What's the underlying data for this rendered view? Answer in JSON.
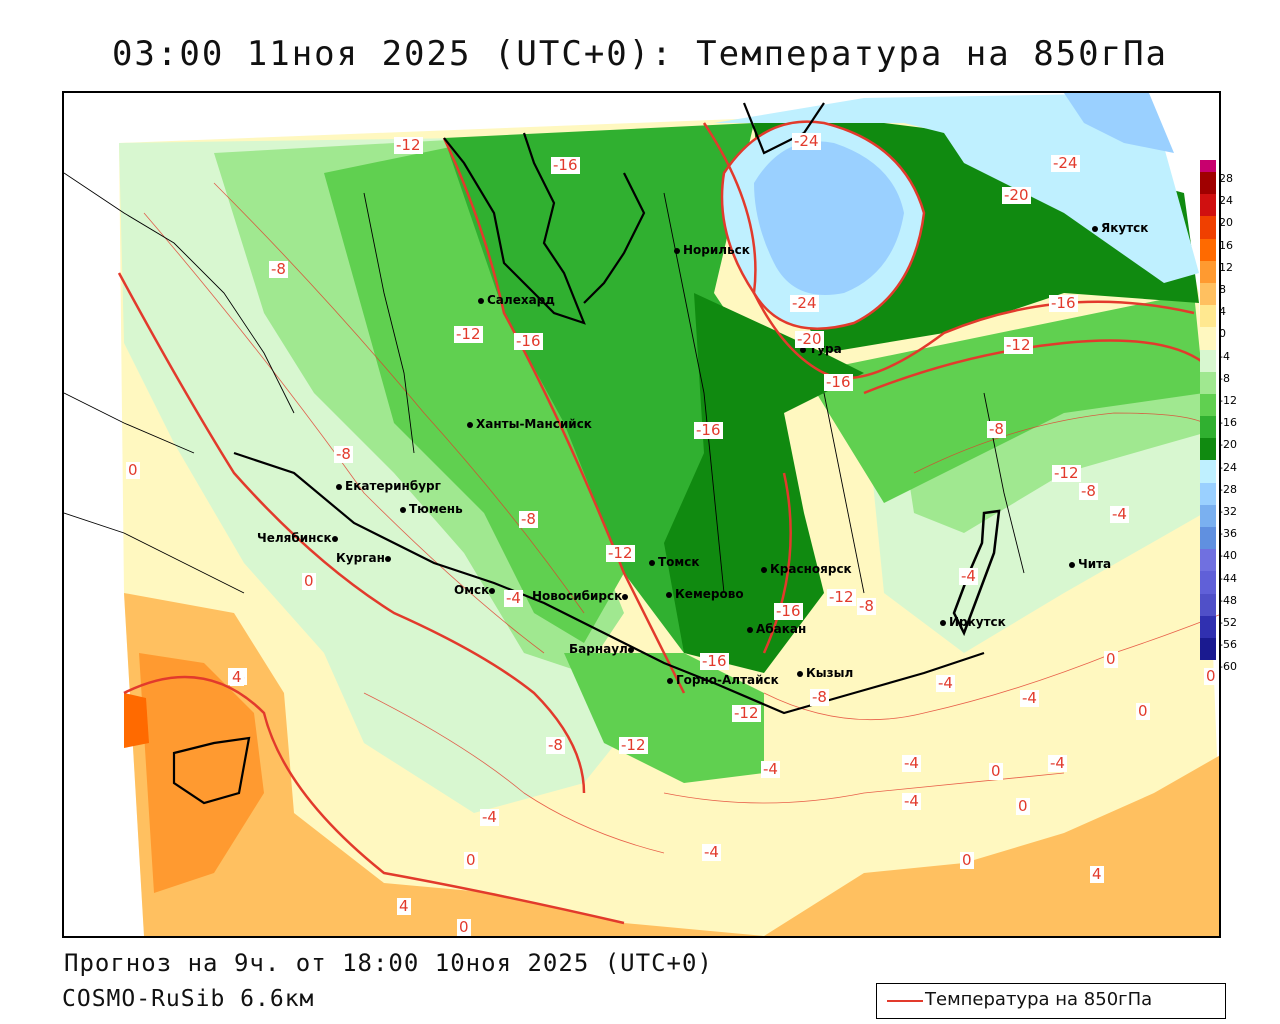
{
  "title": "03:00 11ноя 2025 (UTC+0): Температура на 850гПа",
  "footer": {
    "forecast": "Прогноз на 9ч. от 18:00 10ноя 2025 (UTC+0)",
    "model": "COSMO-RuSib 6.6км"
  },
  "legend": {
    "label": "Температура на 850гПа",
    "line_color": "#e23a2c"
  },
  "colorbar": {
    "levels": [
      "28",
      "24",
      "20",
      "16",
      "12",
      "8",
      "4",
      "0",
      "-4",
      "-8",
      "-12",
      "-16",
      "-20",
      "-24",
      "-28",
      "-32",
      "-36",
      "-40",
      "-44",
      "-48",
      "-52",
      "-56",
      "-60"
    ],
    "colors": [
      "#c8006e",
      "#a00000",
      "#d01010",
      "#f04000",
      "#ff6a00",
      "#ff9a30",
      "#ffc060",
      "#ffe890",
      "#fff8c0",
      "#d8f7d0",
      "#a0e890",
      "#60d050",
      "#30b030",
      "#108a10",
      "#bff0ff",
      "#9ad0ff",
      "#7ab0f0",
      "#6090e0",
      "#7070e0",
      "#6060d8",
      "#5050c8",
      "#3030b0",
      "#1a1a90"
    ]
  },
  "cities": [
    {
      "name": "Салехард"
    },
    {
      "name": "Норильск"
    },
    {
      "name": "Якутск"
    },
    {
      "name": "Тура"
    },
    {
      "name": "Ханты-Мансийск"
    },
    {
      "name": "Екатеринбург"
    },
    {
      "name": "Тюмень"
    },
    {
      "name": "Челябинск"
    },
    {
      "name": "Курган"
    },
    {
      "name": "Омск"
    },
    {
      "name": "Новосибирск"
    },
    {
      "name": "Томск"
    },
    {
      "name": "Кемерово"
    },
    {
      "name": "Красноярск"
    },
    {
      "name": "Абакан"
    },
    {
      "name": "Барнаул"
    },
    {
      "name": "Горно-Алтайск"
    },
    {
      "name": "Кызыл"
    },
    {
      "name": "Иркутск"
    },
    {
      "name": "Чита"
    }
  ],
  "contour_labels": [
    "-12",
    "-16",
    "-24",
    "-24",
    "-20",
    "-8",
    "-24",
    "-12",
    "-16",
    "-20",
    "-16",
    "-16",
    "-12",
    "-16",
    "-8",
    "0",
    "-8",
    "-8",
    "-12",
    "-8",
    "-4",
    "0",
    "-4",
    "-12",
    "-16",
    "-12",
    "-8",
    "-16",
    "-4",
    "-4",
    "0",
    "-4",
    "0",
    "4",
    "-8",
    "-12",
    "-12",
    "-4",
    "-8",
    "-4",
    "-4",
    "-4",
    "0",
    "-4",
    "0",
    "-4",
    "0",
    "-4",
    "4",
    "0",
    "0",
    "4",
    "0"
  ]
}
